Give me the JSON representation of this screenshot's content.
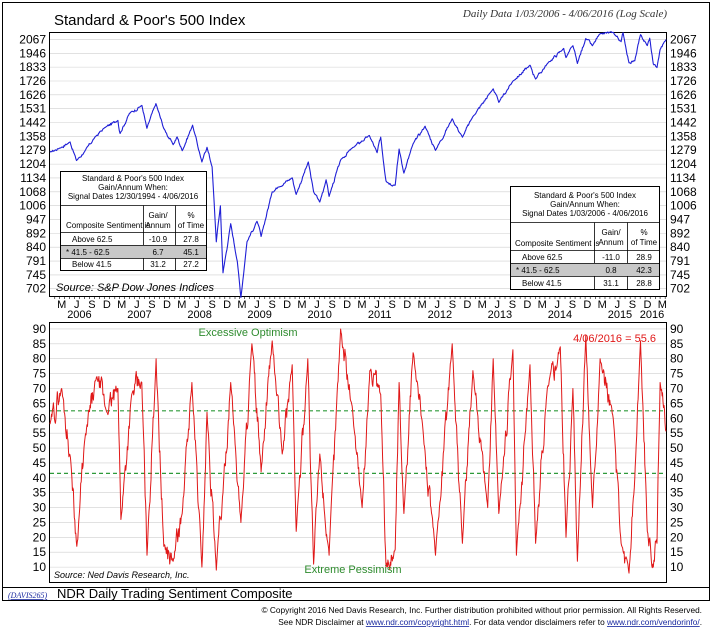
{
  "header": {
    "title": "Standard & Poor's 500 Index",
    "subtitle": "Daily Data 1/03/2006 - 4/06/2016 (Log Scale)"
  },
  "top_panel": {
    "source": "Source: S&P Dow Jones Indices",
    "table_left": {
      "title1": "Standard & Poor's 500 Index",
      "title2": "Gain/Annum When:",
      "title3": "Signal Dates 12/30/1994 - 4/06/2016",
      "head_col1": "Composite Sentiment is",
      "head_col2a": "Gain/",
      "head_col2b": "Annum",
      "head_col3a": "%",
      "head_col3b": "of Time",
      "rows": [
        {
          "label": "Above 62.5",
          "gain": "-10.9",
          "pct": "27.8"
        },
        {
          "label": "* 41.5 - 62.5",
          "gain": "6.7",
          "pct": "45.1"
        },
        {
          "label": "Below 41.5",
          "gain": "31.2",
          "pct": "27.2"
        }
      ]
    },
    "table_right": {
      "title1": "Standard & Poor's 500 Index",
      "title2": "Gain/Annum When:",
      "title3": "Signal Dates 1/03/2006 - 4/06/2016",
      "head_col1": "Composite Sentiment is",
      "head_col2a": "Gain/",
      "head_col2b": "Annum",
      "head_col3a": "%",
      "head_col3b": "of Time",
      "rows": [
        {
          "label": "Above 62.5",
          "gain": "-11.0",
          "pct": "28.9"
        },
        {
          "label": "* 41.5 - 62.5",
          "gain": "0.8",
          "pct": "42.3"
        },
        {
          "label": "Below 41.5",
          "gain": "31.1",
          "pct": "28.8"
        }
      ]
    }
  },
  "bottom_panel": {
    "label_top": "Excessive Optimism",
    "label_bottom": "Extreme Pessimism",
    "current_value": "4/06/2016 = 55.6",
    "source": "Source: Ned Davis Research, Inc."
  },
  "footer": {
    "code": "(DAVIS265)",
    "title": "NDR Daily Trading Sentiment Composite",
    "copyright": "© Copyright 2016 Ned Davis Research, Inc.  Further distribution prohibited without prior permission.  All Rights Reserved.",
    "disclaimer_pre": "See NDR Disclaimer at ",
    "disclaimer_link1": "www.ndr.com/copyright.html",
    "disclaimer_mid": ".  For data vendor disclaimers refer to ",
    "disclaimer_link2": "www.ndr.com/vendorinfo/",
    "disclaimer_end": "."
  },
  "colors": {
    "spx_line": "#1f1fd6",
    "sentiment_line": "#e01818",
    "threshold_line": "#2e9a3a",
    "label_green": "#2e8b2e",
    "current_red": "#e01818",
    "table_shade": "#c8c8c8"
  },
  "chart_data": [
    {
      "type": "line",
      "name": "Standard & Poor's 500 Index",
      "yscale": "log",
      "yticks": [
        702,
        745,
        791,
        840,
        892,
        947,
        1006,
        1068,
        1134,
        1204,
        1279,
        1358,
        1442,
        1531,
        1626,
        1726,
        1833,
        1946,
        2067
      ],
      "ylim": [
        680,
        2125
      ],
      "xlim": [
        "2006-01-03",
        "2016-04-06"
      ],
      "x": [
        "2006-01-03",
        "2006-03-01",
        "2006-05-05",
        "2006-06-13",
        "2006-08-01",
        "2006-10-01",
        "2006-12-01",
        "2007-02-20",
        "2007-03-05",
        "2007-05-01",
        "2007-07-16",
        "2007-08-15",
        "2007-10-09",
        "2007-11-26",
        "2008-01-22",
        "2008-02-15",
        "2008-03-17",
        "2008-05-19",
        "2008-07-15",
        "2008-08-15",
        "2008-09-15",
        "2008-10-10",
        "2008-11-04",
        "2008-11-20",
        "2009-01-06",
        "2009-02-15",
        "2009-03-09",
        "2009-04-15",
        "2009-06-15",
        "2009-07-10",
        "2009-09-15",
        "2009-10-21",
        "2010-01-15",
        "2010-02-08",
        "2010-04-23",
        "2010-05-25",
        "2010-07-02",
        "2010-08-09",
        "2010-08-27",
        "2010-11-05",
        "2011-01-14",
        "2011-04-29",
        "2011-06-15",
        "2011-07-07",
        "2011-08-08",
        "2011-10-03",
        "2011-10-27",
        "2011-11-25",
        "2012-01-20",
        "2012-04-02",
        "2012-06-04",
        "2012-09-14",
        "2012-11-15",
        "2013-01-15",
        "2013-05-21",
        "2013-06-24",
        "2013-09-18",
        "2013-12-31",
        "2014-02-03",
        "2014-04-15",
        "2014-07-24",
        "2014-08-07",
        "2014-09-18",
        "2014-10-15",
        "2014-12-05",
        "2015-01-15",
        "2015-03-02",
        "2015-05-21",
        "2015-07-08",
        "2015-07-20",
        "2015-08-25",
        "2015-09-29",
        "2015-11-03",
        "2015-12-14",
        "2015-12-29",
        "2016-01-20",
        "2016-02-11",
        "2016-03-01",
        "2016-04-06"
      ],
      "values": [
        1268,
        1290,
        1325,
        1223,
        1270,
        1350,
        1410,
        1455,
        1375,
        1500,
        1553,
        1406,
        1565,
        1405,
        1310,
        1355,
        1276,
        1425,
        1215,
        1295,
        1190,
        860,
        1005,
        752,
        930,
        790,
        676,
        860,
        940,
        880,
        1068,
        1090,
        1135,
        1056,
        1215,
        1068,
        1022,
        1125,
        1047,
        1225,
        1290,
        1363,
        1265,
        1353,
        1119,
        1099,
        1285,
        1158,
        1315,
        1419,
        1278,
        1465,
        1353,
        1475,
        1669,
        1573,
        1725,
        1848,
        1741,
        1860,
        1988,
        1910,
        2011,
        1862,
        2075,
        2011,
        2117,
        2131,
        2046,
        2128,
        1868,
        1884,
        2109,
        2012,
        2078,
        1859,
        1829,
        1978,
        2066
      ]
    },
    {
      "type": "line",
      "name": "NDR Daily Trading Sentiment Composite",
      "yticks": [
        10,
        15,
        20,
        25,
        30,
        35,
        40,
        45,
        50,
        55,
        60,
        65,
        70,
        75,
        80,
        85,
        90
      ],
      "ylim": [
        5,
        92
      ],
      "thresholds": [
        62.5,
        41.5
      ],
      "xlim": [
        "2006-01-03",
        "2016-04-06"
      ],
      "x": [
        "2006-01-03",
        "2006-03-15",
        "2006-05-10",
        "2006-06-15",
        "2006-08-01",
        "2006-10-15",
        "2006-12-15",
        "2007-02-20",
        "2007-03-10",
        "2007-05-15",
        "2007-07-15",
        "2007-08-16",
        "2007-10-10",
        "2007-11-26",
        "2008-01-22",
        "2008-03-17",
        "2008-05-15",
        "2008-07-15",
        "2008-08-15",
        "2008-10-10",
        "2008-11-20",
        "2009-01-06",
        "2009-03-09",
        "2009-05-15",
        "2009-07-10",
        "2009-09-15",
        "2009-11-15",
        "2010-01-15",
        "2010-02-08",
        "2010-04-20",
        "2010-05-25",
        "2010-07-02",
        "2010-08-27",
        "2010-11-05",
        "2011-01-15",
        "2011-03-16",
        "2011-05-02",
        "2011-07-07",
        "2011-08-08",
        "2011-10-03",
        "2011-10-27",
        "2011-11-25",
        "2012-01-20",
        "2012-03-20",
        "2012-06-04",
        "2012-09-14",
        "2012-11-15",
        "2013-01-18",
        "2013-04-18",
        "2013-05-21",
        "2013-06-24",
        "2013-09-18",
        "2013-10-09",
        "2013-12-31",
        "2014-02-03",
        "2014-04-15",
        "2014-07-03",
        "2014-08-07",
        "2014-09-18",
        "2014-10-15",
        "2014-12-05",
        "2015-01-15",
        "2015-03-02",
        "2015-05-21",
        "2015-07-08",
        "2015-08-25",
        "2015-09-29",
        "2015-11-03",
        "2015-12-14",
        "2016-01-20",
        "2016-02-11",
        "2016-03-01",
        "2016-04-06"
      ],
      "values": [
        58,
        70,
        45,
        17,
        52,
        74,
        62,
        70,
        26,
        68,
        72,
        14,
        80,
        17,
        12,
        28,
        72,
        10,
        62,
        9,
        35,
        72,
        25,
        85,
        42,
        86,
        48,
        78,
        22,
        80,
        11,
        48,
        14,
        90,
        64,
        30,
        76,
        68,
        10,
        16,
        72,
        28,
        82,
        56,
        14,
        85,
        18,
        76,
        30,
        80,
        28,
        83,
        14,
        78,
        18,
        70,
        84,
        20,
        70,
        12,
        88,
        30,
        80,
        60,
        18,
        8,
        40,
        86,
        22,
        10,
        18,
        72,
        55.6
      ]
    }
  ]
}
